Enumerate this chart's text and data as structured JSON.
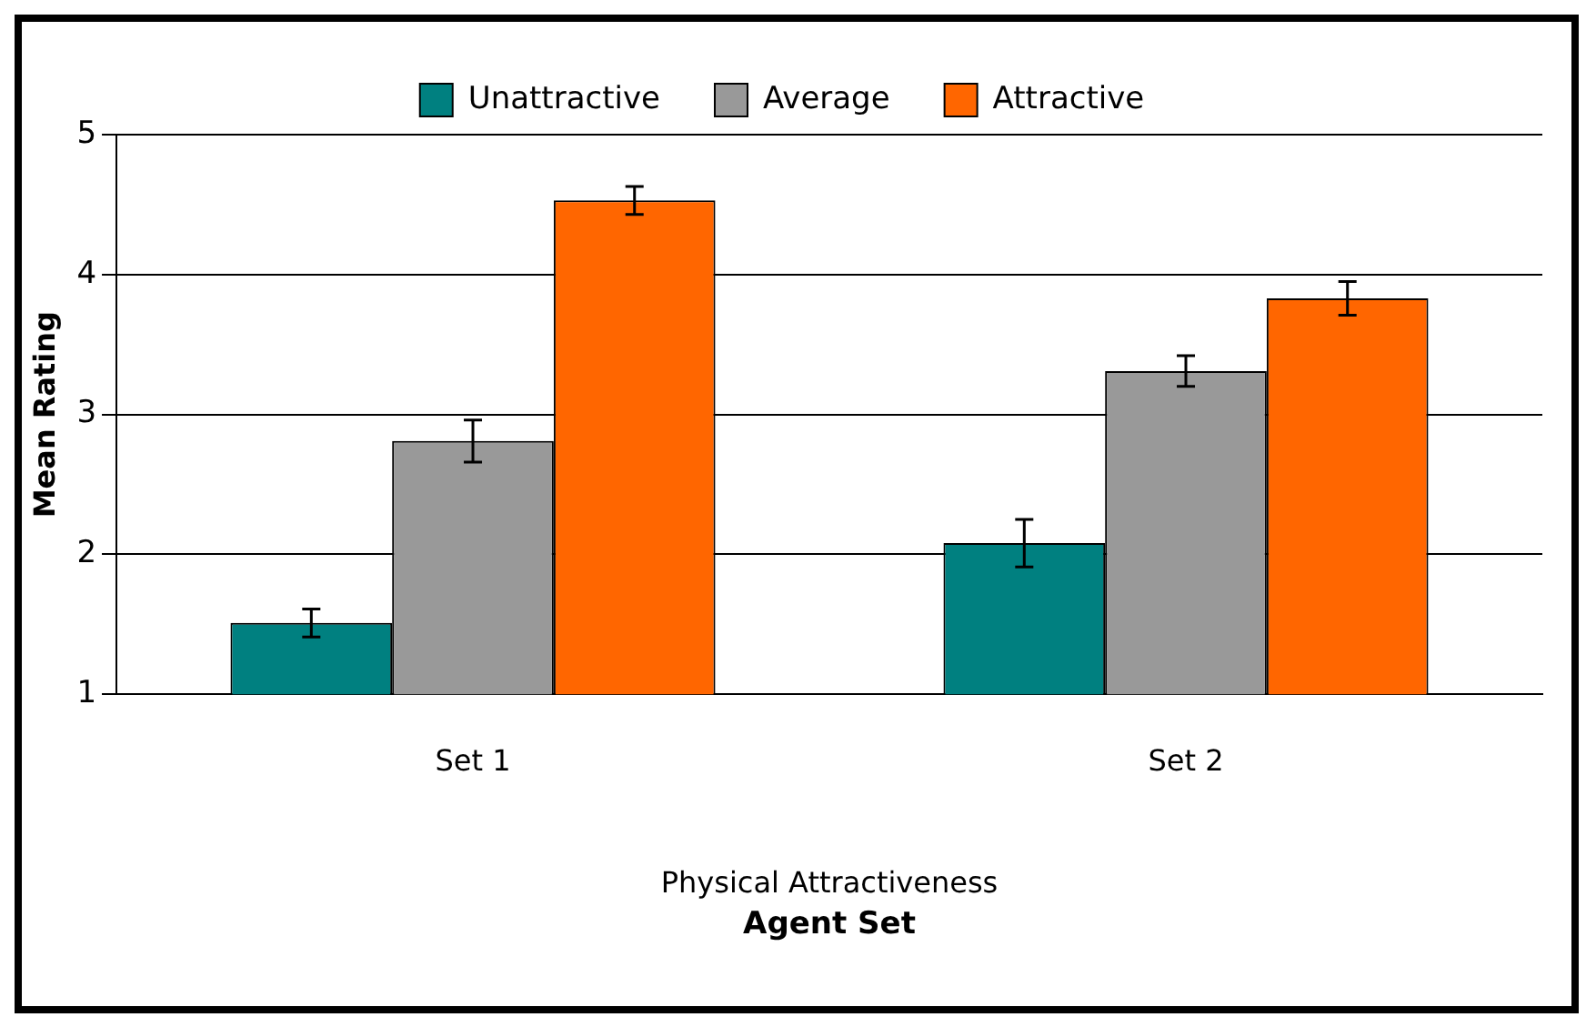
{
  "chart_data": {
    "type": "bar",
    "xlabel": "Physical Attractiveness",
    "ylabel": "Mean Rating",
    "categories": [
      "Set 1",
      "Set 2"
    ],
    "series": [
      {
        "name": "Unattractive",
        "color": "#008080",
        "values": [
          1.51,
          2.08
        ],
        "errors": [
          0.1,
          0.17
        ]
      },
      {
        "name": "Average",
        "color": "#999999",
        "values": [
          2.81,
          3.31
        ],
        "errors": [
          0.15,
          0.11
        ]
      },
      {
        "name": "Attractive",
        "color": "#ff6600",
        "values": [
          4.53,
          3.83
        ],
        "errors": [
          0.1,
          0.12
        ]
      }
    ],
    "ylim": [
      1,
      5
    ],
    "yticks": [
      1,
      2,
      3,
      4,
      5
    ],
    "grid": "y",
    "legend": "top",
    "annotations": [
      "Agent Set"
    ]
  }
}
